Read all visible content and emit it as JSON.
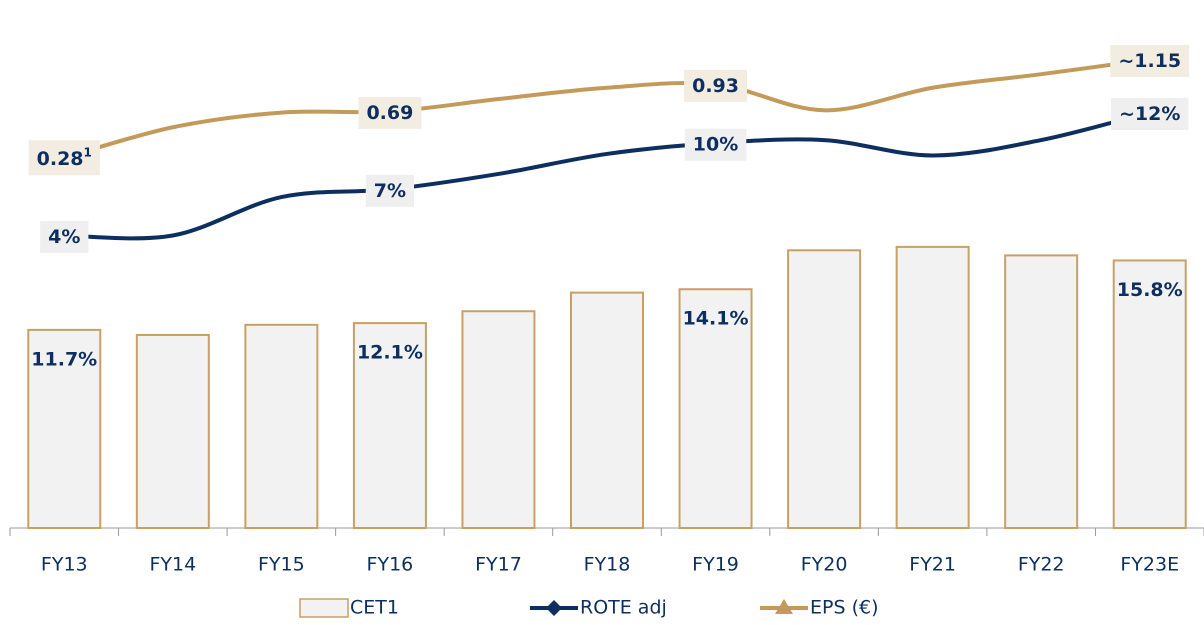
{
  "chart_data": {
    "type": "combo",
    "categories": [
      "FY13",
      "FY14",
      "FY15",
      "FY16",
      "FY17",
      "FY18",
      "FY19",
      "FY20",
      "FY21",
      "FY22",
      "FY23E"
    ],
    "series": [
      {
        "name": "CET1",
        "type": "bar",
        "color": "#c9a063",
        "fill": "#f2f2f2",
        "values": [
          11.7,
          11.4,
          12.0,
          12.1,
          12.8,
          13.9,
          14.1,
          16.4,
          16.6,
          16.1,
          15.8
        ],
        "value_labels": [
          "11.7%",
          null,
          null,
          "12.1%",
          null,
          null,
          "14.1%",
          null,
          null,
          null,
          "15.8%"
        ]
      },
      {
        "name": "ROTE adj",
        "type": "line",
        "axis": "y2",
        "color": "#0d2f5f",
        "values": [
          4,
          4,
          6.5,
          7,
          8,
          9.3,
          10,
          10.2,
          9.2,
          10.2,
          12
        ],
        "value_labels": [
          "4%",
          null,
          null,
          "7%",
          null,
          null,
          "10%",
          null,
          null,
          null,
          "~12%"
        ]
      },
      {
        "name": "EPS (€)",
        "type": "line",
        "axis": "y3",
        "color": "#c49a5a",
        "values": [
          0.28,
          0.55,
          0.68,
          0.69,
          0.8,
          0.9,
          0.93,
          0.7,
          0.9,
          1.02,
          1.15
        ],
        "value_labels": [
          "0.28",
          null,
          null,
          "0.69",
          null,
          null,
          "0.93",
          null,
          null,
          null,
          "~1.15"
        ],
        "footnote": "1"
      }
    ],
    "ylim": [
      0,
      30
    ],
    "y2lim": [
      -15,
      18
    ],
    "y3lim": [
      -3,
      1.5
    ]
  }
}
